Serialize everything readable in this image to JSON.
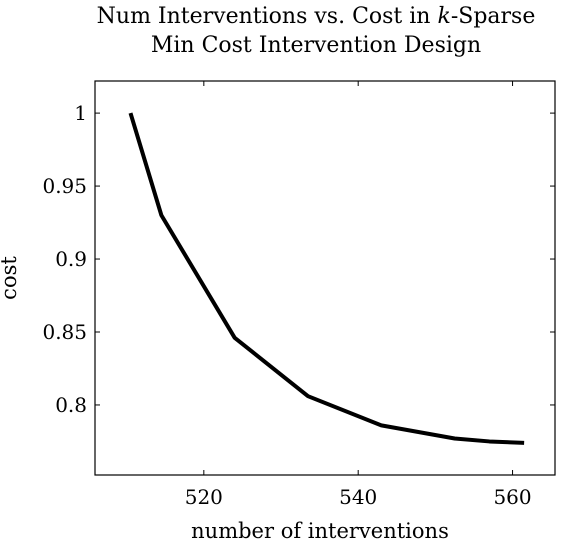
{
  "chart_data": {
    "type": "line",
    "title_lines": [
      {
        "before": "Num Interventions vs. Cost in ",
        "variable": "k",
        "after": "-Sparse"
      },
      {
        "before": "Min Cost Intervention Design",
        "variable": "",
        "after": ""
      }
    ],
    "xlabel": "number of interventions",
    "ylabel": "cost",
    "xlim": [
      505.9,
      565.5
    ],
    "ylim": [
      0.752,
      1.022
    ],
    "xticks": [
      520,
      540,
      560
    ],
    "xtick_labels": [
      "520",
      "540",
      "560"
    ],
    "yticks": [
      0.8,
      0.85,
      0.9,
      0.95,
      1
    ],
    "ytick_labels": [
      "0.8",
      "0.85",
      "0.9",
      "0.95",
      "1"
    ],
    "grid": false,
    "legend": "none",
    "series": [
      {
        "color": "#000000",
        "x": [
          510.5,
          514.5,
          524,
          533.5,
          543,
          552.5,
          557,
          561.5
        ],
        "y": [
          1.0,
          0.93,
          0.846,
          0.806,
          0.786,
          0.777,
          0.775,
          0.774
        ]
      }
    ]
  }
}
